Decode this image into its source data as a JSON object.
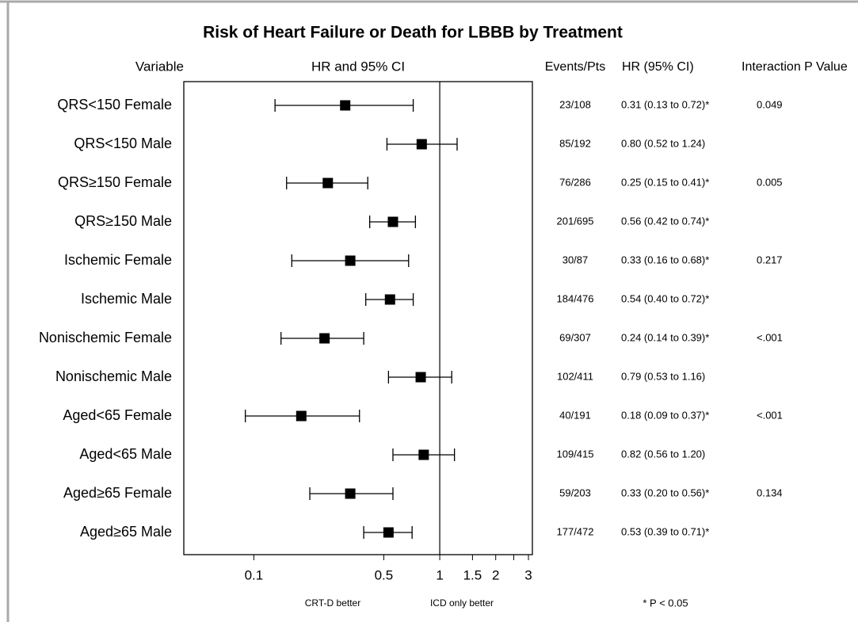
{
  "chart_data": {
    "type": "forest",
    "title": "Risk of Heart Failure or Death for LBBB by Treatment",
    "headers": [
      "Variable",
      "HR and 95% CI",
      "Events/Pts",
      "HR (95% CI)",
      "Interaction P Value"
    ],
    "categories": [
      "QRS<150 Female",
      "QRS<150 Male",
      "QRS≥150 Female",
      "QRS≥150 Male",
      "Ischemic Female",
      "Ischemic Male",
      "Nonischemic Female",
      "Nonischemic Male",
      "Aged<65 Female",
      "Aged<65 Male",
      "Aged≥65 Female",
      "Aged≥65 Male"
    ],
    "hr": [
      0.31,
      0.8,
      0.25,
      0.56,
      0.33,
      0.54,
      0.24,
      0.79,
      0.18,
      0.82,
      0.33,
      0.53
    ],
    "lower": [
      0.13,
      0.52,
      0.15,
      0.42,
      0.16,
      0.4,
      0.14,
      0.53,
      0.09,
      0.56,
      0.2,
      0.39
    ],
    "upper": [
      0.72,
      1.24,
      0.41,
      0.74,
      0.68,
      0.72,
      0.39,
      1.16,
      0.37,
      1.2,
      0.56,
      0.71
    ],
    "events": [
      "23/108",
      "85/192",
      "76/286",
      "201/695",
      "30/87",
      "184/476",
      "69/307",
      "102/411",
      "40/191",
      "109/415",
      "59/203",
      "177/472"
    ],
    "hr_labels": [
      "0.31 (0.13 to 0.72)*",
      "0.80 (0.52 to 1.24)",
      "0.25 (0.15 to 0.41)*",
      "0.56 (0.42 to 0.74)*",
      "0.33 (0.16 to 0.68)*",
      "0.54 (0.40 to 0.72)*",
      "0.24 (0.14 to 0.39)*",
      "0.79 (0.53 to 1.16)",
      "0.18 (0.09 to 0.37)*",
      "0.82 (0.56 to 1.20)",
      "0.33 (0.20 to 0.56)*",
      "0.53 (0.39 to 0.71)*"
    ],
    "p_values": [
      "0.049",
      null,
      "0.005",
      null,
      "0.217",
      null,
      "<.001",
      null,
      "<.001",
      null,
      "0.134",
      null
    ],
    "xscale": "log",
    "xlim": [
      0.042,
      3.15
    ],
    "xticks": [
      0.1,
      0.5,
      1,
      1.5,
      2,
      3
    ],
    "xminorticks": [
      2.5
    ],
    "reference": 1,
    "left_note": "CRT-D better",
    "right_note": "ICD only better",
    "footnote": "* P < 0.05",
    "color": "#000000"
  }
}
